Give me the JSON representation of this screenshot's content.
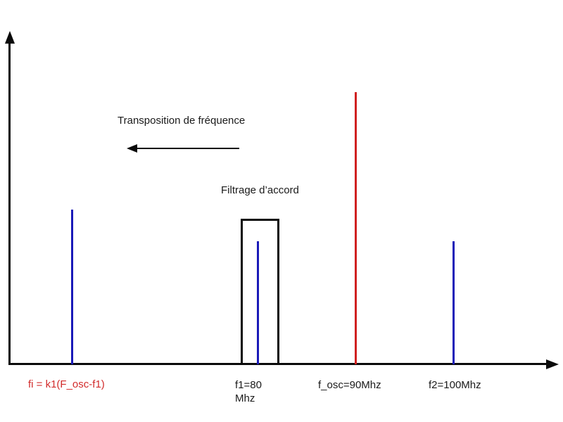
{
  "diagram": {
    "background": "#ffffff",
    "annotations": {
      "transposition": "Transposition de fréquence",
      "filter": "Filtrage d’accord"
    },
    "labels": {
      "fi": "fi = k1(F_osc-f1)",
      "f1_line1": "f1=80",
      "f1_line2": "Mhz",
      "f_osc": "f_osc=90Mhz",
      "f2": "f2=100Mhz"
    },
    "colors": {
      "axis": "#0a0a0a",
      "blue_line": "#1a1ab8",
      "red_line": "#d02020",
      "red_label": "#d22b2b"
    },
    "spectral_lines": [
      {
        "name": "fi",
        "label": "fi = k1(F_osc-f1)",
        "color": "blue",
        "relative_height": 0.57,
        "inside_filter_box": false
      },
      {
        "name": "f1",
        "label": "f1=80 Mhz",
        "color": "blue",
        "relative_height": 0.45,
        "inside_filter_box": true
      },
      {
        "name": "f_osc",
        "label": "f_osc=90Mhz",
        "color": "red",
        "relative_height": 1.0,
        "inside_filter_box": false
      },
      {
        "name": "f2",
        "label": "f2=100Mhz",
        "color": "blue",
        "relative_height": 0.45,
        "inside_filter_box": false
      }
    ]
  }
}
